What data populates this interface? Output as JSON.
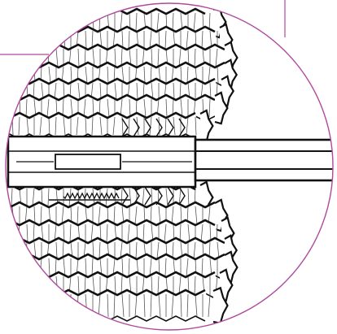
{
  "figure": {
    "description_visible_text": "",
    "colors": {
      "background": "#ffffff",
      "ink": "#111111",
      "outline": "#b0489c",
      "hatch": "#555555"
    },
    "parts": {
      "clip_outline": "circle-outline",
      "frame": "corner-frame",
      "body": "ribbed-body",
      "shaft": "shaft",
      "spring": "spring"
    }
  }
}
